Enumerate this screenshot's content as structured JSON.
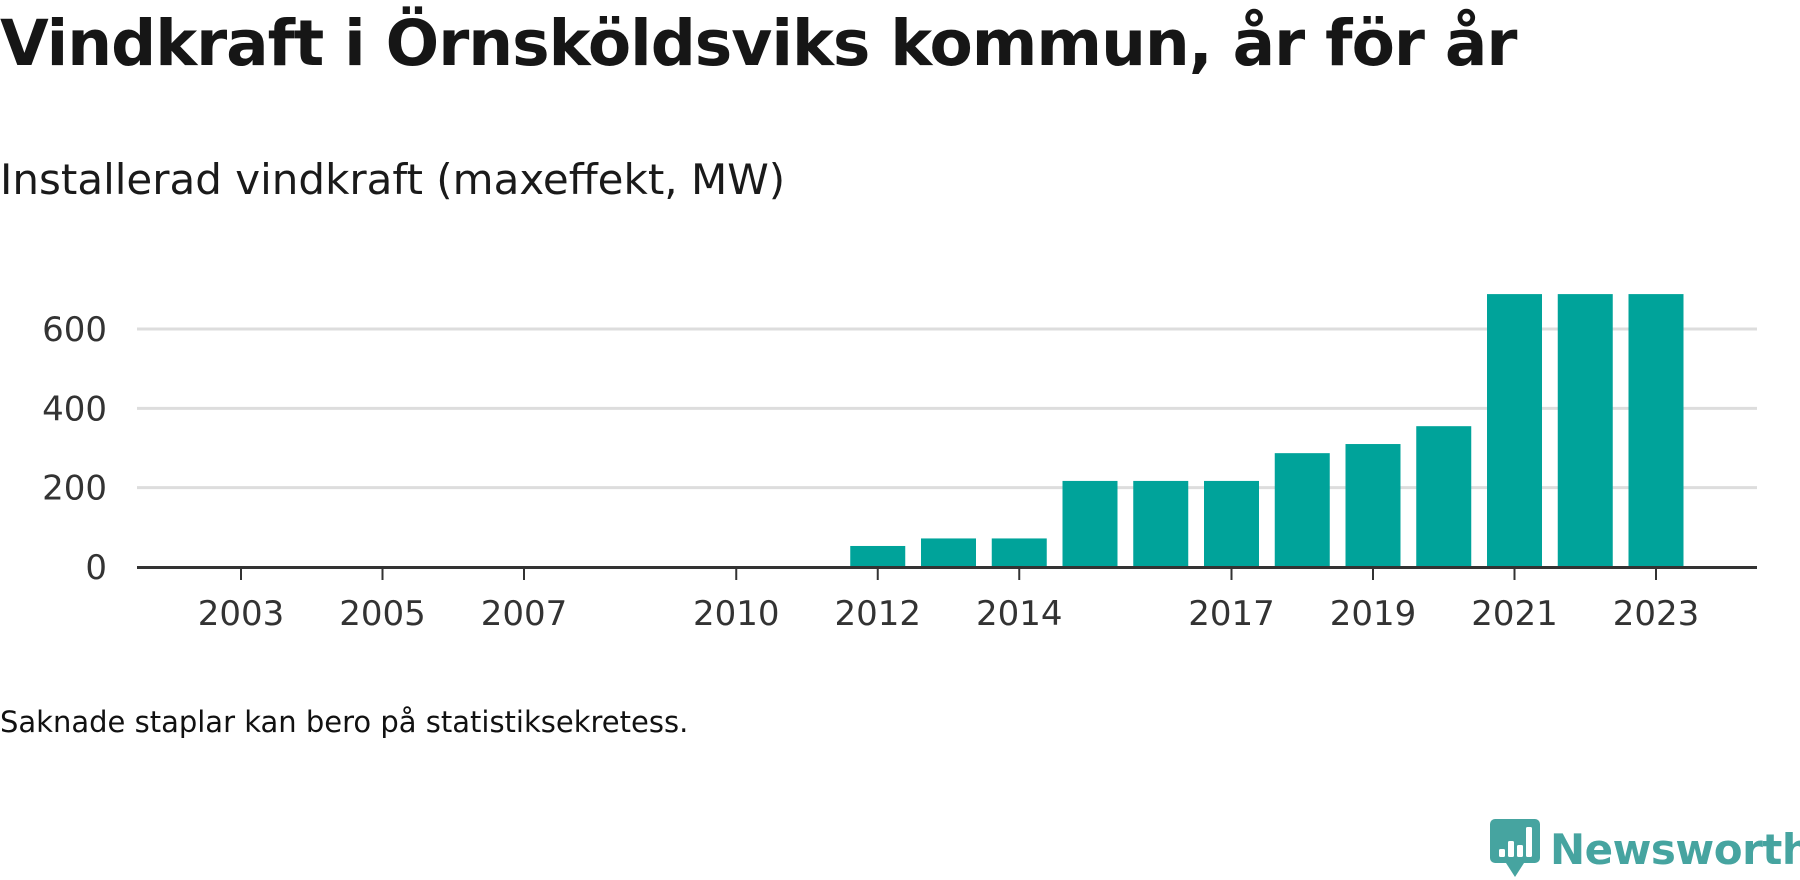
{
  "title": "Vindkraft i Örnsköldsviks kommun, år för år",
  "subtitle": "Installerad vindkraft (maxeffekt, MW)",
  "note": "Saknade staplar kan bero på statistiksekretess.",
  "brand": {
    "name": "Newsworthy",
    "icon": "newsworthy-logo-icon",
    "color": "#46a4a0"
  },
  "colors": {
    "bar": "#00a39a",
    "grid": "#dddddd",
    "axis": "#333333",
    "tick_text": "#333333"
  },
  "chart_data": {
    "type": "bar",
    "categories": [
      "2003",
      "2004",
      "2005",
      "2006",
      "2007",
      "2008",
      "2009",
      "2010",
      "2011",
      "2012",
      "2013",
      "2014",
      "2015",
      "2016",
      "2017",
      "2018",
      "2019",
      "2020",
      "2021",
      "2022",
      "2023"
    ],
    "values": [
      null,
      null,
      null,
      null,
      null,
      null,
      null,
      null,
      null,
      53,
      72,
      72,
      217,
      217,
      217,
      287,
      310,
      355,
      688,
      688,
      688
    ],
    "x_tick_labels": [
      "2003",
      "2005",
      "2007",
      "2010",
      "2012",
      "2014",
      "2017",
      "2019",
      "2021",
      "2023"
    ],
    "y_ticks": [
      0,
      200,
      400,
      600
    ],
    "ylim": [
      0,
      700
    ],
    "title": "Vindkraft i Örnsköldsviks kommun, år för år",
    "subtitle": "Installerad vindkraft (maxeffekt, MW)",
    "xlabel": "",
    "ylabel": "",
    "grid": true,
    "legend": "none"
  }
}
